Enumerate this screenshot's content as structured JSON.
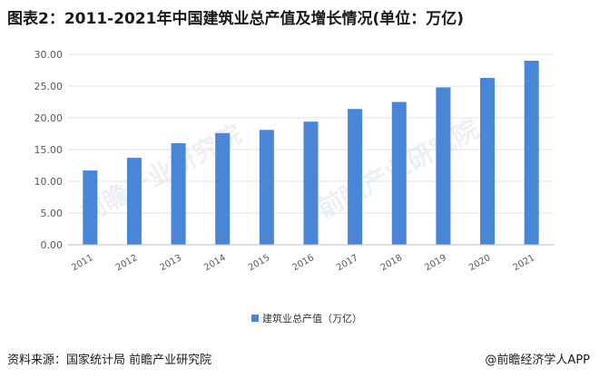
{
  "header": {
    "title": "图表2：2011-2021年中国建筑业总产值及增长情况(单位：万亿)"
  },
  "chart_data": {
    "type": "bar",
    "categories": [
      "2011",
      "2012",
      "2013",
      "2014",
      "2015",
      "2016",
      "2017",
      "2018",
      "2019",
      "2020",
      "2021"
    ],
    "series": [
      {
        "name": "建筑业总产值（万亿）",
        "values": [
          11.7,
          13.7,
          16.0,
          17.6,
          18.1,
          19.4,
          21.4,
          22.5,
          24.8,
          26.3,
          29.0
        ],
        "color": "#4a86d8"
      }
    ],
    "yticks": [
      "0.00",
      "5.00",
      "10.00",
      "15.00",
      "20.00",
      "25.00",
      "30.00"
    ],
    "ylim": [
      0,
      30
    ],
    "grid": true,
    "legend_position": "bottom-center"
  },
  "watermark": {
    "text": "前瞻产业研究院"
  },
  "footer": {
    "source": "资料来源：国家统计局 前瞻产业研究院",
    "brand": "@前瞻经济学人APP"
  }
}
